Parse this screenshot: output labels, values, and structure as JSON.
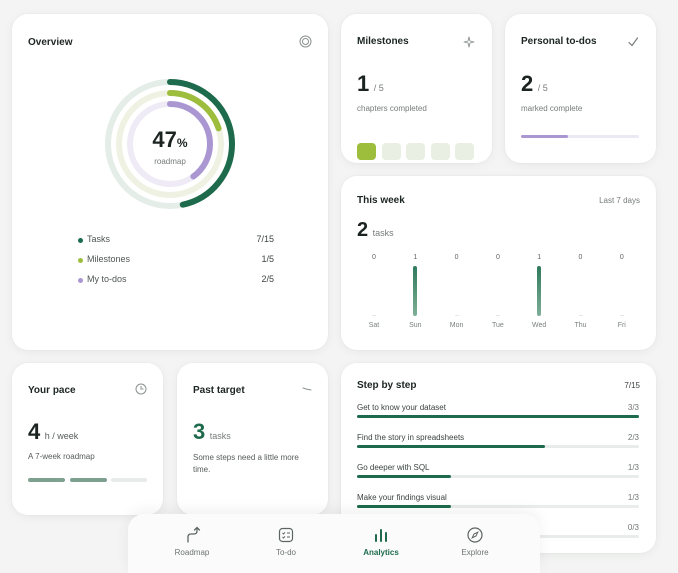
{
  "colors": {
    "primary": "#1d6b4c",
    "lime": "#9dbd3d",
    "lavender": "#aa97d2",
    "track": "#e9f0eb"
  },
  "overview": {
    "title": "Overview",
    "icon": "target-icon",
    "percent": "47",
    "percent_sign": "%",
    "ring_label": "roadmap",
    "rings": {
      "tasks": 0.4667,
      "milestones": 0.2,
      "todos": 0.4
    },
    "legend": [
      {
        "label": "Tasks",
        "value": "7/15",
        "color": "#1d6b4c"
      },
      {
        "label": "Milestones",
        "value": "1/5",
        "color": "#9dbd3d"
      },
      {
        "label": "My to-dos",
        "value": "2/5",
        "color": "#aa97d2"
      }
    ]
  },
  "milestones": {
    "title": "Milestones",
    "icon": "sparkle-icon",
    "count": "1",
    "total": "/ 5",
    "caption": "chapters completed",
    "filled": 1,
    "segments": 5
  },
  "todos": {
    "title": "Personal to-dos",
    "icon": "check-icon",
    "count": "2",
    "total": "/ 5",
    "caption": "marked complete",
    "progress": 0.4
  },
  "week": {
    "title": "This week",
    "range": "Last 7 days",
    "count": "2",
    "unit": "tasks",
    "max": 1,
    "days": [
      {
        "day": "Sat",
        "value": 0
      },
      {
        "day": "Sun",
        "value": 1
      },
      {
        "day": "Mon",
        "value": 0
      },
      {
        "day": "Tue",
        "value": 0
      },
      {
        "day": "Wed",
        "value": 1
      },
      {
        "day": "Thu",
        "value": 0
      },
      {
        "day": "Fri",
        "value": 0
      }
    ]
  },
  "pace": {
    "title": "Your pace",
    "icon": "clock-icon",
    "value": "4",
    "unit": "h / week",
    "caption": "A 7-week roadmap",
    "weeks_done": 2,
    "weeks_total": 3
  },
  "past": {
    "title": "Past target",
    "icon": "trend-icon",
    "value": "3",
    "unit": "tasks",
    "caption": "Some steps need a little more time."
  },
  "steps": {
    "title": "Step by step",
    "total": "7/15",
    "items": [
      {
        "name": "Get to know your dataset",
        "count": "3/3",
        "progress": 1.0
      },
      {
        "name": "Find the story in spreadsheets",
        "count": "2/3",
        "progress": 0.667
      },
      {
        "name": "Go deeper with SQL",
        "count": "1/3",
        "progress": 0.333
      },
      {
        "name": "Make your findings visual",
        "count": "1/3",
        "progress": 0.333
      },
      {
        "name": "",
        "count": "0/3",
        "progress": 0
      }
    ]
  },
  "nav": {
    "items": [
      {
        "label": "Roadmap",
        "icon": "route-icon",
        "active": false
      },
      {
        "label": "To-do",
        "icon": "checklist-icon",
        "active": false
      },
      {
        "label": "Analytics",
        "icon": "bar-chart-icon",
        "active": true
      },
      {
        "label": "Explore",
        "icon": "compass-icon",
        "active": false
      }
    ]
  }
}
